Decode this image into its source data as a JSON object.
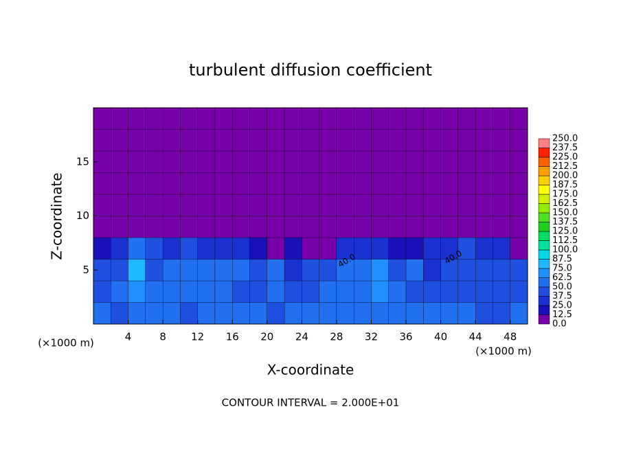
{
  "chart_data": {
    "type": "heatmap",
    "title": "turbulent diffusion coefficient",
    "x_label": "X-coordinate",
    "y_label": "Z-coordinate",
    "axis_unit": "(×1000 m)",
    "footer": "CONTOUR INTERVAL = 2.000E+01",
    "contour_labels": [
      "40.0",
      "40.0"
    ],
    "xlim": [
      0,
      50
    ],
    "ylim": [
      0,
      20
    ],
    "xticks": [
      4,
      8,
      12,
      16,
      20,
      24,
      28,
      32,
      36,
      40,
      44,
      48
    ],
    "yticks": [
      5,
      10,
      15
    ],
    "x": [
      1,
      3,
      5,
      7,
      9,
      11,
      13,
      15,
      17,
      19,
      21,
      23,
      25,
      27,
      29,
      31,
      33,
      35,
      37,
      39,
      41,
      43,
      45,
      47,
      49
    ],
    "z": [
      1,
      3,
      5,
      7,
      9,
      11,
      13,
      15,
      17,
      19
    ],
    "field": [
      [
        50,
        45,
        55,
        50,
        50,
        45,
        55,
        60,
        50,
        50,
        45,
        50,
        55,
        60,
        55,
        50,
        60,
        55,
        50,
        55,
        50,
        50,
        45,
        45,
        50
      ],
      [
        45,
        60,
        70,
        55,
        55,
        50,
        50,
        55,
        45,
        45,
        50,
        40,
        45,
        55,
        55,
        60,
        70,
        50,
        45,
        40,
        45,
        45,
        40,
        40,
        45
      ],
      [
        40,
        45,
        80,
        45,
        50,
        55,
        60,
        50,
        50,
        40,
        55,
        30,
        45,
        40,
        50,
        60,
        70,
        40,
        50,
        35,
        40,
        45,
        40,
        40,
        40
      ],
      [
        20,
        30,
        60,
        40,
        35,
        40,
        35,
        30,
        30,
        20,
        10,
        15,
        5,
        10,
        30,
        35,
        25,
        15,
        20,
        30,
        35,
        40,
        30,
        35,
        10
      ],
      [
        0,
        0,
        0,
        0,
        0,
        0,
        0,
        0,
        0,
        0,
        0,
        0,
        0,
        0,
        0,
        0,
        0,
        0,
        0,
        0,
        0,
        0,
        0,
        0,
        0
      ],
      [
        0,
        0,
        0,
        0,
        0,
        0,
        0,
        0,
        0,
        0,
        0,
        0,
        0,
        0,
        0,
        0,
        0,
        0,
        0,
        0,
        0,
        0,
        0,
        0,
        0
      ],
      [
        0,
        0,
        0,
        0,
        0,
        0,
        0,
        0,
        0,
        0,
        0,
        0,
        0,
        0,
        0,
        0,
        0,
        0,
        0,
        0,
        0,
        0,
        0,
        0,
        0
      ],
      [
        0,
        0,
        0,
        0,
        0,
        0,
        0,
        0,
        0,
        0,
        0,
        0,
        0,
        0,
        0,
        0,
        0,
        0,
        0,
        0,
        0,
        0,
        0,
        0,
        0
      ],
      [
        0,
        0,
        0,
        0,
        0,
        0,
        0,
        0,
        0,
        0,
        0,
        0,
        0,
        0,
        0,
        0,
        0,
        0,
        0,
        0,
        0,
        0,
        0,
        0,
        0
      ],
      [
        0,
        0,
        0,
        0,
        0,
        0,
        0,
        0,
        0,
        0,
        0,
        0,
        0,
        0,
        0,
        0,
        0,
        0,
        0,
        0,
        0,
        0,
        0,
        0,
        0
      ]
    ],
    "colorbar_ticks": [
      {
        "value": 0,
        "label": "0.0"
      },
      {
        "value": 12.5,
        "label": "12.5"
      },
      {
        "value": 25,
        "label": "25.0"
      },
      {
        "value": 37.5,
        "label": "37.5"
      },
      {
        "value": 50,
        "label": "50.0"
      },
      {
        "value": 62.5,
        "label": "62.5"
      },
      {
        "value": 75,
        "label": "75.0"
      },
      {
        "value": 87.5,
        "label": "87.5"
      },
      {
        "value": 100,
        "label": "100.0"
      },
      {
        "value": 112.5,
        "label": "112.5"
      },
      {
        "value": 125,
        "label": "125.0"
      },
      {
        "value": 137.5,
        "label": "137.5"
      },
      {
        "value": 150,
        "label": "150.0"
      },
      {
        "value": 162.5,
        "label": "162.5"
      },
      {
        "value": 175,
        "label": "175.0"
      },
      {
        "value": 187.5,
        "label": "187.5"
      },
      {
        "value": 200,
        "label": "200.0"
      },
      {
        "value": 212.5,
        "label": "212.5"
      },
      {
        "value": 225,
        "label": "225.0"
      },
      {
        "value": 237.5,
        "label": "237.5"
      },
      {
        "value": 250,
        "label": "250.0"
      }
    ],
    "colors": [
      "#7800a8",
      "#1a10b8",
      "#1a30d0",
      "#2050e0",
      "#2070f0",
      "#2090ff",
      "#20b8ff",
      "#00d8e8",
      "#00e0a0",
      "#00e060",
      "#20d020",
      "#50e020",
      "#90f000",
      "#d0f000",
      "#ffff00",
      "#ffd000",
      "#ffa000",
      "#ff6000",
      "#ff2000",
      "#ff8080"
    ]
  }
}
